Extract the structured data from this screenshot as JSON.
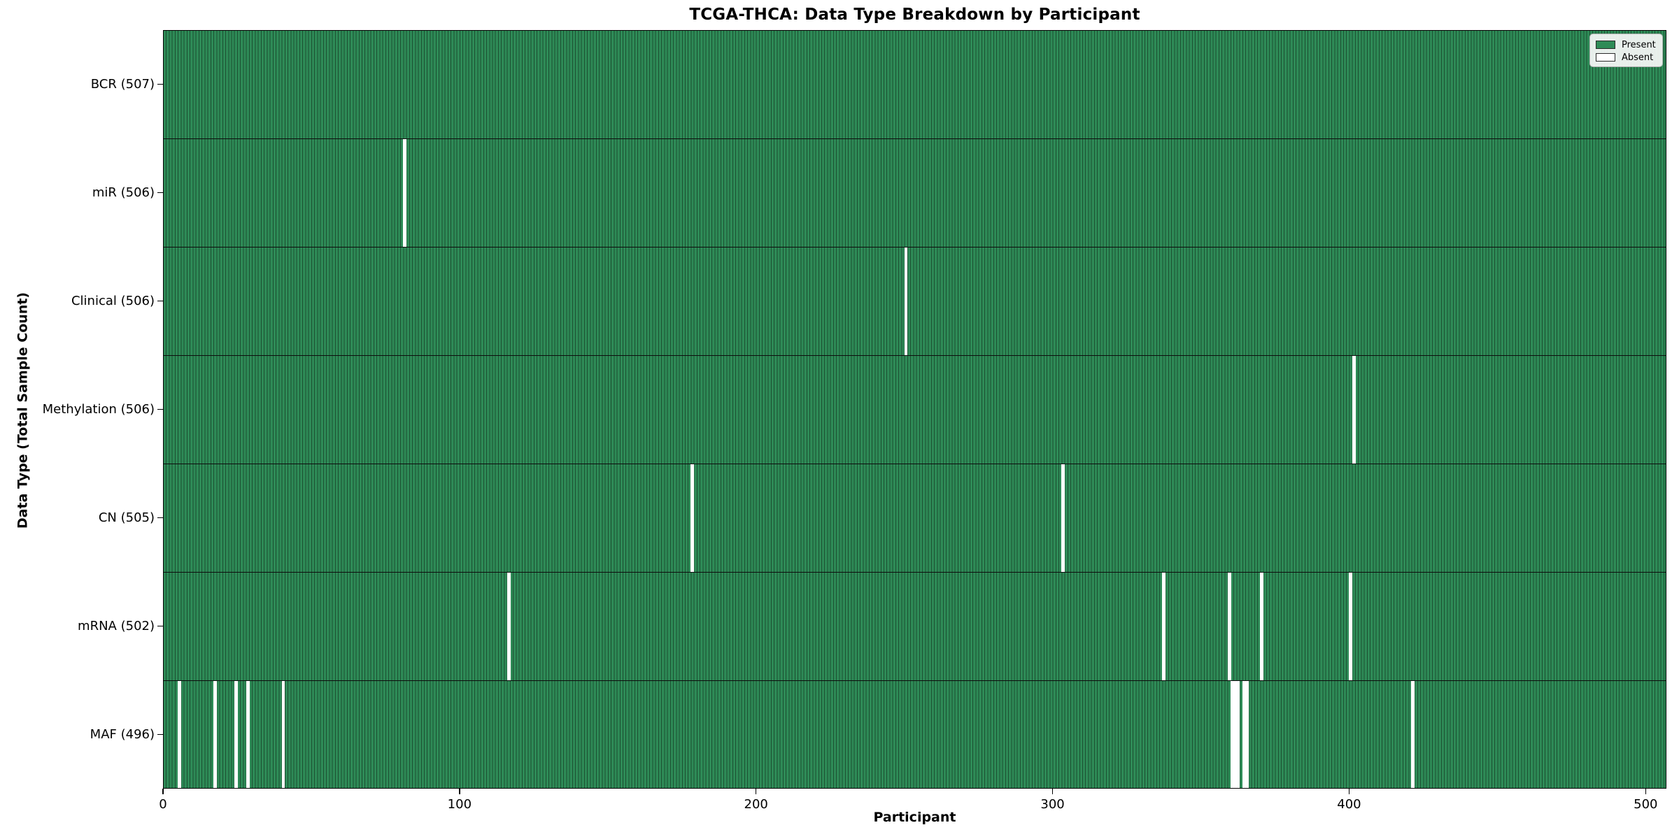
{
  "title": "TCGA-THCA: Data Type Breakdown by Participant",
  "axes": {
    "xlabel": "Participant",
    "ylabel": "Data Type (Total Sample Count)"
  },
  "legend": {
    "present_label": "Present",
    "absent_label": "Absent"
  },
  "colors": {
    "present_green": "#2e8b57",
    "bar_edge": "#1c4f31",
    "absent_white": "#ffffff",
    "legend_bg": "#f8f8f8"
  },
  "chart_data": {
    "type": "heatmap",
    "title": "TCGA-THCA: Data Type Breakdown by Participant",
    "xlabel": "Participant",
    "ylabel": "Data Type (Total Sample Count)",
    "legend": [
      "Present",
      "Absent"
    ],
    "legend_position": "upper right",
    "x_ticks": [
      0,
      100,
      200,
      300,
      400,
      500
    ],
    "x_range": [
      0,
      507
    ],
    "total_participants": 507,
    "rows": [
      {
        "label": "BCR (507)",
        "data_type": "BCR",
        "present_count": 507,
        "absent_participants": []
      },
      {
        "label": "miR (506)",
        "data_type": "miR",
        "present_count": 506,
        "absent_participants": [
          81
        ]
      },
      {
        "label": "Clinical (506)",
        "data_type": "Clinical",
        "present_count": 506,
        "absent_participants": [
          250
        ]
      },
      {
        "label": "Methylation (506)",
        "data_type": "Methylation",
        "present_count": 506,
        "absent_participants": [
          401
        ]
      },
      {
        "label": "CN (505)",
        "data_type": "CN",
        "present_count": 505,
        "absent_participants": [
          178,
          303
        ]
      },
      {
        "label": "mRNA (502)",
        "data_type": "mRNA",
        "present_count": 502,
        "absent_participants": [
          116,
          337,
          359,
          370,
          400
        ]
      },
      {
        "label": "MAF (496)",
        "data_type": "MAF",
        "present_count": 496,
        "absent_participants": [
          5,
          17,
          24,
          28,
          40,
          360,
          361,
          362,
          364,
          365,
          421
        ]
      }
    ]
  }
}
